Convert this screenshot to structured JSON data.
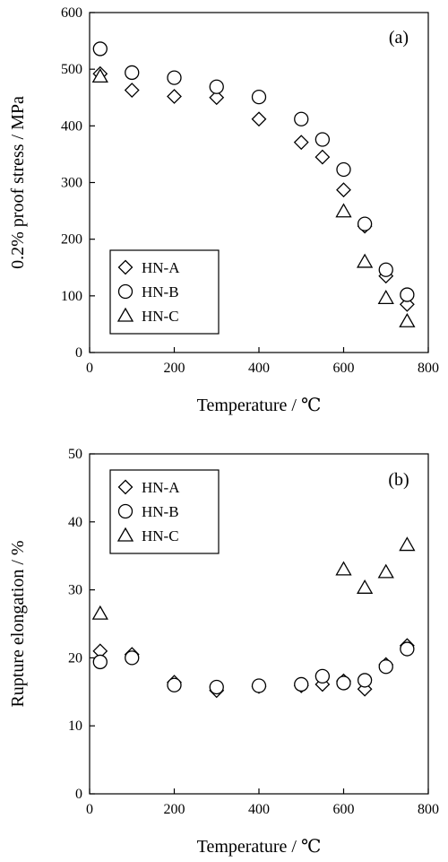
{
  "chart_data": [
    {
      "type": "scatter",
      "panel_label": "(a)",
      "xlabel": "Temperature / ℃",
      "ylabel": "0.2% proof stress / MPa",
      "xlim": [
        0,
        800
      ],
      "ylim": [
        0,
        600
      ],
      "xticks": [
        0,
        200,
        400,
        600,
        800
      ],
      "yticks": [
        0,
        100,
        200,
        300,
        400,
        500,
        600
      ],
      "grid": false,
      "legend_position": "bottom-left",
      "series": [
        {
          "name": "HN-A",
          "marker": "diamond",
          "x": [
            25,
            100,
            200,
            300,
            400,
            500,
            550,
            600,
            650,
            700,
            750
          ],
          "y": [
            492,
            463,
            452,
            450,
            412,
            371,
            345,
            287,
            223,
            135,
            85
          ]
        },
        {
          "name": "HN-B",
          "marker": "circle",
          "x": [
            25,
            100,
            200,
            300,
            400,
            500,
            550,
            600,
            650,
            700,
            750
          ],
          "y": [
            536,
            494,
            485,
            469,
            451,
            412,
            376,
            323,
            227,
            146,
            102
          ]
        },
        {
          "name": "HN-C",
          "marker": "triangle",
          "x": [
            25,
            600,
            650,
            700,
            750
          ],
          "y": [
            487,
            249,
            160,
            96,
            55
          ]
        }
      ]
    },
    {
      "type": "scatter",
      "panel_label": "(b)",
      "xlabel": "Temperature / ℃",
      "ylabel": "Rupture elongation / %",
      "xlim": [
        0,
        800
      ],
      "ylim": [
        0,
        50
      ],
      "xticks": [
        0,
        200,
        400,
        600,
        800
      ],
      "yticks": [
        0,
        10,
        20,
        30,
        40,
        50
      ],
      "grid": false,
      "legend_position": "top-left",
      "series": [
        {
          "name": "HN-A",
          "marker": "diamond",
          "x": [
            25,
            100,
            200,
            300,
            400,
            500,
            550,
            600,
            650,
            700,
            750
          ],
          "y": [
            21.0,
            20.5,
            16.4,
            15.2,
            15.8,
            15.9,
            16.1,
            16.6,
            15.4,
            19.0,
            21.8
          ]
        },
        {
          "name": "HN-B",
          "marker": "circle",
          "x": [
            25,
            100,
            200,
            300,
            400,
            500,
            550,
            600,
            650,
            700,
            750
          ],
          "y": [
            19.4,
            20.0,
            16.0,
            15.7,
            15.9,
            16.1,
            17.3,
            16.3,
            16.7,
            18.7,
            21.3
          ]
        },
        {
          "name": "HN-C",
          "marker": "triangle",
          "x": [
            25,
            600,
            650,
            700,
            750
          ],
          "y": [
            26.5,
            33.0,
            30.3,
            32.6,
            36.6
          ]
        }
      ]
    }
  ]
}
